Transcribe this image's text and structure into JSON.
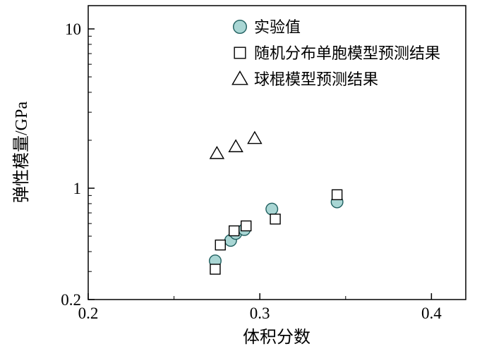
{
  "chart_data": {
    "type": "scatter",
    "title": "",
    "xlabel": "体积分数",
    "ylabel": "弹性模量/GPa",
    "x_axis": {
      "scale": "linear",
      "min": 0.2,
      "max": 0.42,
      "major_ticks": [
        0.2,
        0.3,
        0.4
      ],
      "tick_labels": [
        "0.2",
        "0.3",
        "0.4"
      ],
      "minor_ticks": [
        0.25,
        0.35
      ]
    },
    "y_axis": {
      "scale": "log",
      "min": 0.2,
      "max": 14,
      "major_ticks": [
        0.2,
        1,
        10
      ],
      "tick_labels": [
        "0.2",
        "1",
        "10"
      ],
      "minor_ticks": [
        0.3,
        0.4,
        0.5,
        0.6,
        0.7,
        0.8,
        0.9,
        2,
        3,
        4,
        5,
        6,
        7,
        8,
        9
      ]
    },
    "series": [
      {
        "name": "实验值",
        "marker": "circle",
        "fill": "#a9d6d4",
        "stroke": "#1f5f5f",
        "points": [
          [
            0.274,
            0.35
          ],
          [
            0.283,
            0.47
          ],
          [
            0.286,
            0.52
          ],
          [
            0.291,
            0.55
          ],
          [
            0.307,
            0.74
          ],
          [
            0.345,
            0.82
          ]
        ]
      },
      {
        "name": "随机分布单胞模型预测结果",
        "marker": "square",
        "fill": "#ffffff",
        "stroke": "#000000",
        "points": [
          [
            0.274,
            0.31
          ],
          [
            0.277,
            0.44
          ],
          [
            0.285,
            0.54
          ],
          [
            0.292,
            0.58
          ],
          [
            0.309,
            0.64
          ],
          [
            0.345,
            0.91
          ]
        ]
      },
      {
        "name": "球棍模型预测结果",
        "marker": "triangle",
        "fill": "#ffffff",
        "stroke": "#000000",
        "points": [
          [
            0.275,
            1.65
          ],
          [
            0.286,
            1.82
          ],
          [
            0.297,
            2.05
          ]
        ]
      }
    ],
    "legend": {
      "position": "inside-top",
      "entries": [
        "实验值",
        "随机分布单胞模型预测结果",
        "球棍模型预测结果"
      ]
    },
    "grid": "off"
  },
  "colors": {
    "background": "#ffffff",
    "axis": "#000000",
    "experimental_marker_fill": "#a9d6d4"
  }
}
